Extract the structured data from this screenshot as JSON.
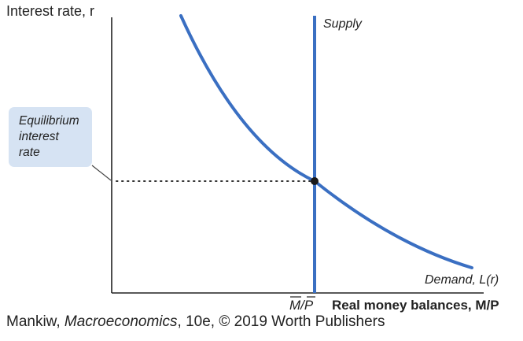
{
  "diagram": {
    "y_axis_label": "Interest rate, r",
    "x_axis_label": "Real money balances, M/P",
    "x_tick_label": "M/P",
    "supply_label": "Supply",
    "demand_label": "Demand, L(r)",
    "callout": {
      "lines": [
        "Equilibrium",
        "interest",
        "rate"
      ]
    }
  },
  "credit": {
    "author": "Mankiw, ",
    "book": "Macroeconomics",
    "rest": ", 10e, © 2019 Worth Publishers"
  },
  "colors": {
    "curve": "#3a6fc2",
    "axis": "#222222",
    "callout_bg": "#d6e3f3",
    "equilibrium_dot": "#1a1a1a"
  }
}
